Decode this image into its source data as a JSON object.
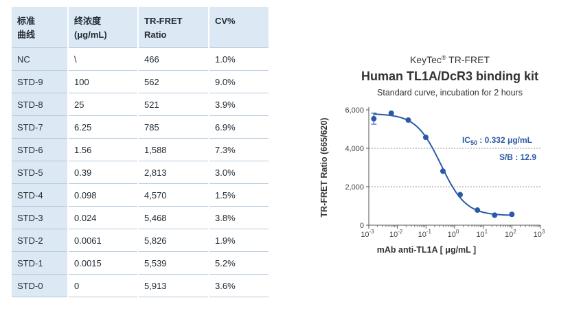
{
  "table": {
    "headers": [
      [
        "标准",
        "曲线"
      ],
      [
        "终浓度",
        "(μg/mL)"
      ],
      [
        "TR-FRET",
        "Ratio"
      ],
      [
        "CV%"
      ]
    ],
    "rows": [
      [
        "NC",
        "\\",
        "466",
        "1.0%"
      ],
      [
        "STD-9",
        "100",
        "562",
        "9.0%"
      ],
      [
        "STD-8",
        "25",
        "521",
        "3.9%"
      ],
      [
        "STD-7",
        "6.25",
        "785",
        "6.9%"
      ],
      [
        "STD-6",
        "1.56",
        "1,588",
        "7.3%"
      ],
      [
        "STD-5",
        "0.39",
        "2,813",
        "3.0%"
      ],
      [
        "STD-4",
        "0.098",
        "4,570",
        "1.5%"
      ],
      [
        "STD-3",
        "0.024",
        "5,468",
        "3.8%"
      ],
      [
        "STD-2",
        "0.0061",
        "5,826",
        "1.9%"
      ],
      [
        "STD-1",
        "0.0015",
        "5,539",
        "5.2%"
      ],
      [
        "STD-0",
        "0",
        "5,913",
        "3.6%"
      ]
    ]
  },
  "chart_data": {
    "type": "scatter",
    "brand": "KeyTec",
    "brand_mark": "®",
    "brand_suffix": "TR-FRET",
    "title": "Human TL1A/DcR3 binding kit",
    "subtitle": "Standard curve,  incubation for 2 hours",
    "xlabel": "mAb anti-TL1A  [ μg/mL ]",
    "ylabel": "TR-FRET Ratio (665/620)",
    "x_scale": "log",
    "xlim": [
      0.001,
      1000
    ],
    "ylim": [
      0,
      6000
    ],
    "x_ticks": [
      "10",
      "10",
      "10",
      "10",
      "10",
      "10",
      "10"
    ],
    "x_tick_exponents": [
      "-3",
      "-2",
      "-1",
      "0",
      "1",
      "2",
      "3"
    ],
    "y_ticks": [
      "0",
      "2,000",
      "4,000",
      "6,000"
    ],
    "gridlines_y": [
      2000,
      4000
    ],
    "points": [
      {
        "x": 0.0015,
        "y": 5539,
        "error": 288
      },
      {
        "x": 0.0061,
        "y": 5826
      },
      {
        "x": 0.024,
        "y": 5468
      },
      {
        "x": 0.098,
        "y": 4570
      },
      {
        "x": 0.39,
        "y": 2813
      },
      {
        "x": 1.56,
        "y": 1588
      },
      {
        "x": 6.25,
        "y": 785
      },
      {
        "x": 25,
        "y": 521
      },
      {
        "x": 100,
        "y": 562
      }
    ],
    "fit_curve": {
      "bottom": 500,
      "top": 5800,
      "ic50": 0.332,
      "hill": 1.0
    },
    "annotations": {
      "ic50_label": "IC",
      "ic50_sub": "50",
      "ic50_value": " : 0.332 μg/mL",
      "sb": "S/B : 12.9"
    },
    "colors": {
      "marker": "#2a5aa6",
      "header_fill": "#dce8f4"
    }
  }
}
